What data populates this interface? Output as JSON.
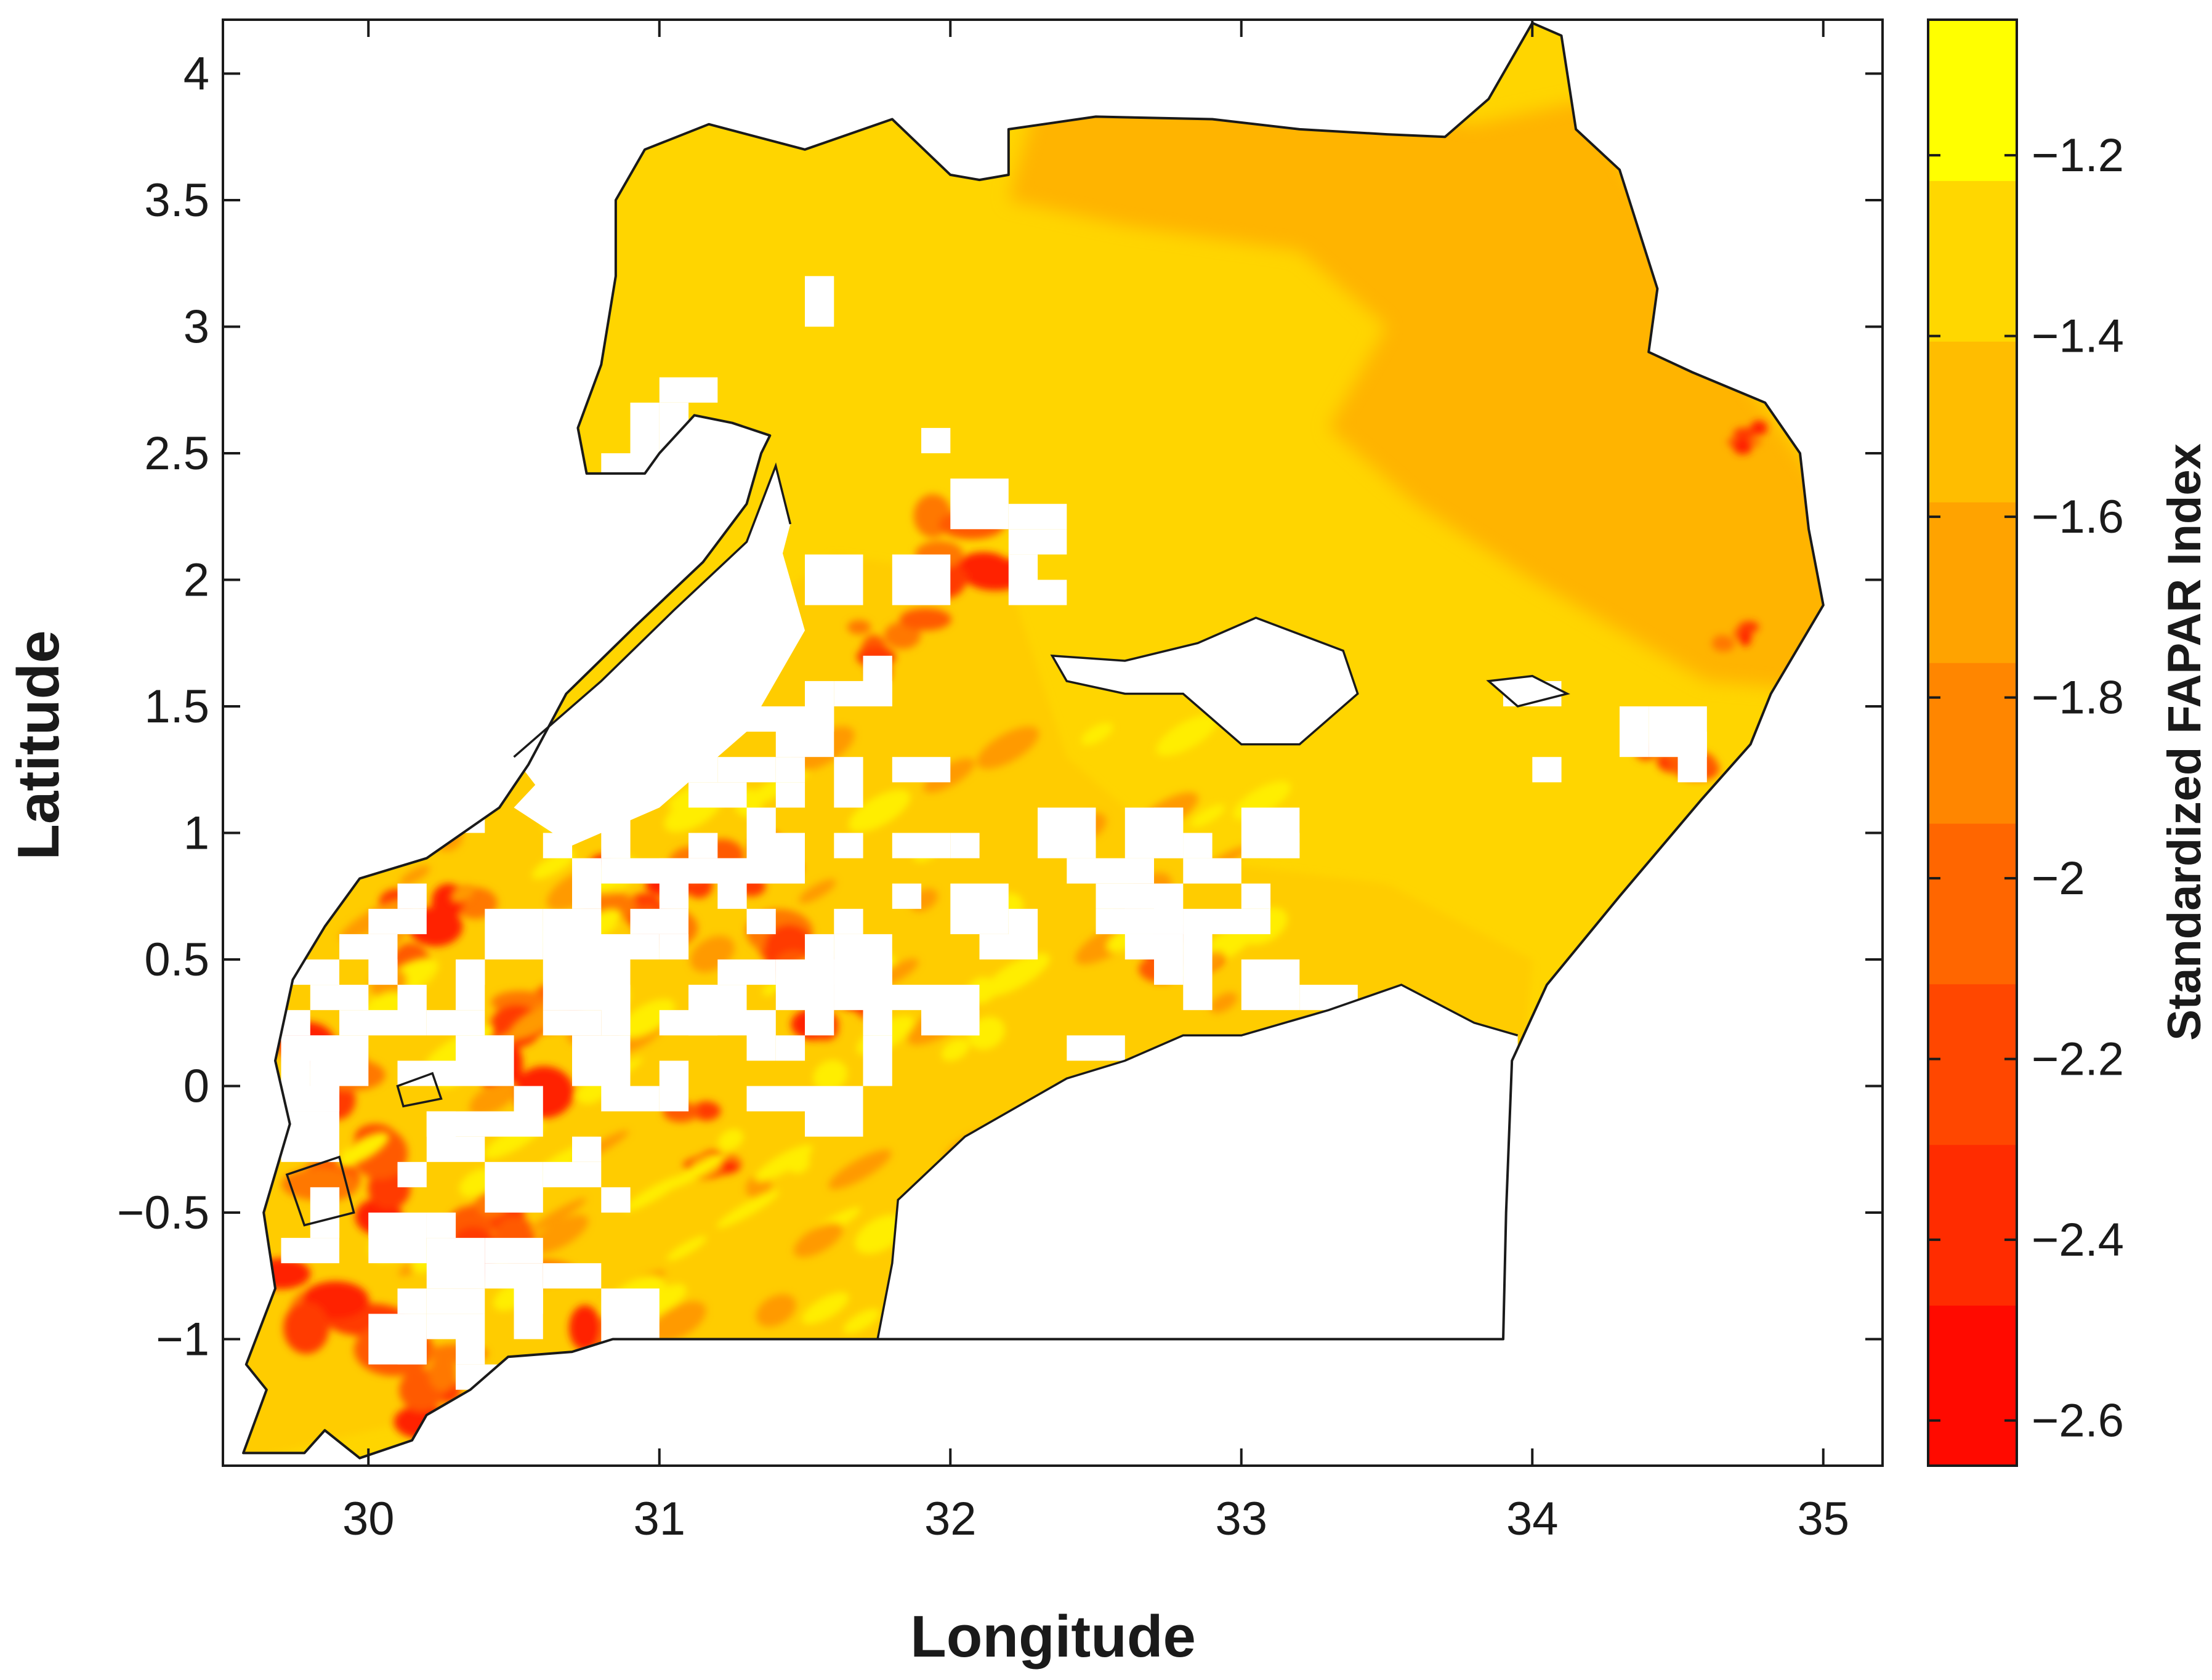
{
  "chart_data": {
    "type": "heatmap",
    "title": "",
    "xlabel": "Longitude",
    "ylabel": "Latitude",
    "xlim": [
      29.5,
      35.2
    ],
    "ylim": [
      -1.5,
      4.25
    ],
    "x_ticks": [
      "30",
      "31",
      "32",
      "33",
      "34",
      "35"
    ],
    "y_ticks": [
      "4",
      "3.5",
      "3",
      "2.5",
      "2",
      "1.5",
      "1",
      "0.5",
      "0",
      "−0.5",
      "−1"
    ],
    "colorbar": {
      "label": "Standardized FAPAR Index",
      "range": [
        -2.65,
        -1.05
      ],
      "ticks": [
        "−1.2",
        "−1.4",
        "−1.6",
        "−1.8",
        "−2",
        "−2.2",
        "−2.4",
        "−2.6"
      ],
      "colors": [
        "#ff0a00",
        "#ff2c00",
        "#ff4700",
        "#ff6600",
        "#ff8600",
        "#ffa300",
        "#ffbd00",
        "#ffd700",
        "#ffff00"
      ]
    },
    "region_colors": {
      "north": "#ffd500",
      "northeast": "#ffb400",
      "southwest": "#ffcc00",
      "hotspot": "#ff2400"
    }
  }
}
